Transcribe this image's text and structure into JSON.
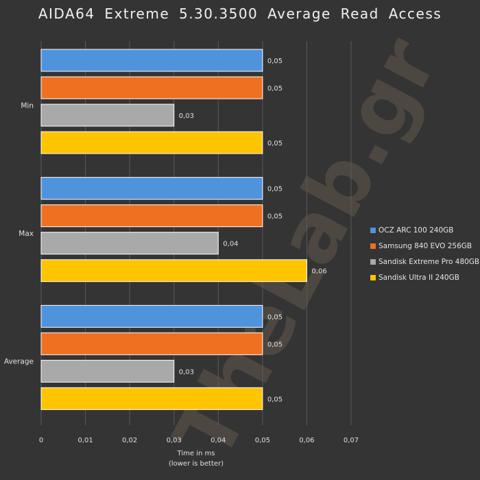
{
  "watermark": "TheLab.gr",
  "chart_data": {
    "type": "bar",
    "orientation": "horizontal",
    "title": "AIDA64  Extreme  5.30.3500  Average  Read  Access",
    "xlabel_lines": [
      "Time in ms",
      "(lower is better)"
    ],
    "categories": [
      "Min",
      "Max",
      "Average"
    ],
    "xlim": [
      0,
      0.07
    ],
    "xticks": [
      0,
      0.01,
      0.02,
      0.03,
      0.04,
      0.05,
      0.06,
      0.07
    ],
    "xtick_labels": [
      "0",
      "0,01",
      "0,02",
      "0,03",
      "0,04",
      "0,05",
      "0,06",
      "0,07"
    ],
    "grid": true,
    "legend_position": "right",
    "series": [
      {
        "name": "OCZ ARC 100 240GB",
        "color": "#4f93dd",
        "values": [
          0.05,
          0.05,
          0.05
        ],
        "labels": [
          "0,05",
          "0,05",
          "0,05"
        ]
      },
      {
        "name": "Samsung 840 EVO 256GB",
        "color": "#f07022",
        "values": [
          0.05,
          0.05,
          0.05
        ],
        "labels": [
          "0,05",
          "0,05",
          "0,05"
        ]
      },
      {
        "name": "Sandisk Extreme Pro 480GB",
        "color": "#a9a9a9",
        "values": [
          0.03,
          0.04,
          0.03
        ],
        "labels": [
          "0,03",
          "0,04",
          "0,03"
        ]
      },
      {
        "name": "Sandisk Ultra II 240GB",
        "color": "#ffc400",
        "values": [
          0.05,
          0.06,
          0.05
        ],
        "labels": [
          "0,05",
          "0,06",
          "0,05"
        ]
      }
    ]
  }
}
